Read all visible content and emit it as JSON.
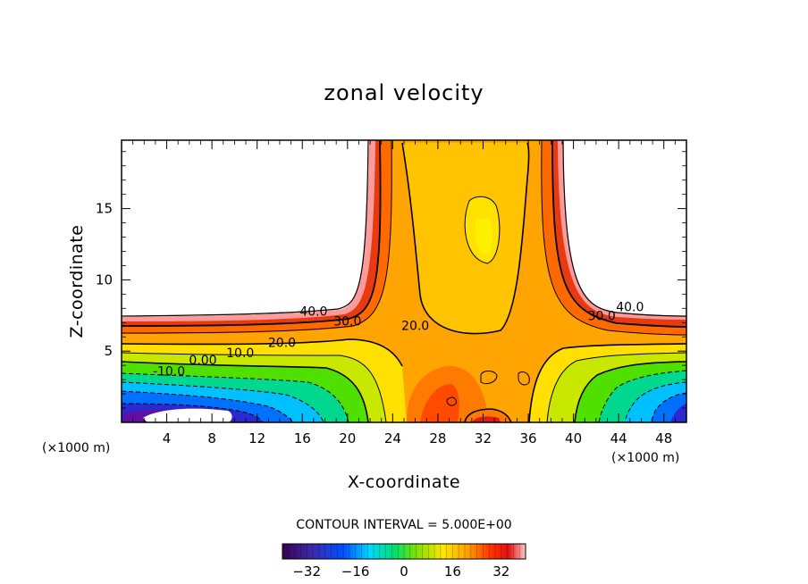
{
  "chart_data": {
    "type": "heatmap",
    "title": "zonal velocity",
    "xlabel": "X-coordinate",
    "ylabel": "Z-coordinate",
    "x_unit": "(×1000 m)",
    "z_unit": "(×1000 m)",
    "xlim": [
      0,
      50
    ],
    "ylim": [
      0,
      19.8
    ],
    "x_ticks": [
      4,
      8,
      12,
      16,
      20,
      24,
      28,
      32,
      36,
      40,
      44,
      48
    ],
    "y_ticks": [
      5,
      10,
      15
    ],
    "contour_interval_text": "CONTOUR INTERVAL = 5.000E+00",
    "contour_labels": [
      {
        "text": "40.0",
        "x": 17.0,
        "y": 7.8
      },
      {
        "text": "30.0",
        "x": 20.0,
        "y": 7.1
      },
      {
        "text": "20.0",
        "x": 14.2,
        "y": 5.6
      },
      {
        "text": "10.0",
        "x": 10.5,
        "y": 4.9
      },
      {
        "text": "0.00",
        "x": 7.2,
        "y": 4.4
      },
      {
        "text": "-10.0",
        "x": 4.2,
        "y": 3.6
      },
      {
        "text": "20.0",
        "x": 26.0,
        "y": 6.8
      },
      {
        "text": "30.0",
        "x": 42.5,
        "y": 7.5
      },
      {
        "text": "40.0",
        "x": 45.0,
        "y": 8.1
      }
    ],
    "colorbar": {
      "range": [
        -40,
        40
      ],
      "tick_labels": [
        "-32",
        "-16",
        "0",
        "16",
        "32"
      ],
      "tick_values": [
        -32,
        -16,
        0,
        16,
        32
      ]
    },
    "grid": false
  }
}
